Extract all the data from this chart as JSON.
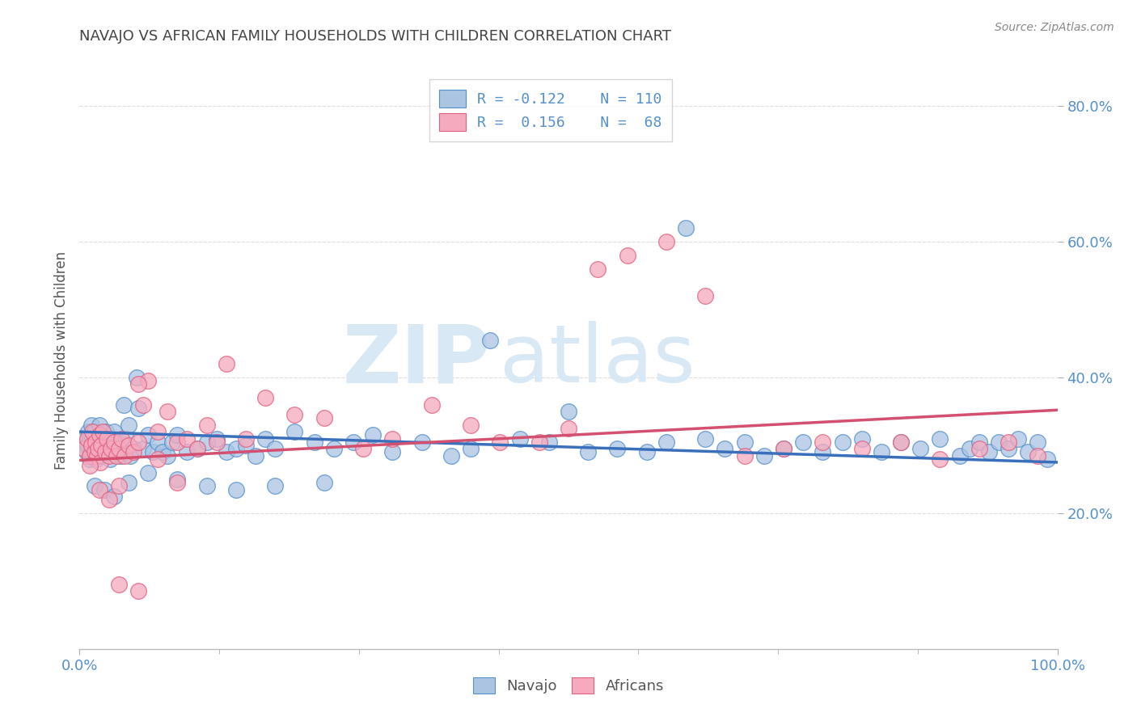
{
  "title": "NAVAJO VS AFRICAN FAMILY HOUSEHOLDS WITH CHILDREN CORRELATION CHART",
  "source": "Source: ZipAtlas.com",
  "ylabel": "Family Households with Children",
  "xlim": [
    0.0,
    1.0
  ],
  "ylim": [
    0.0,
    0.85
  ],
  "yticks": [
    0.2,
    0.4,
    0.6,
    0.8
  ],
  "ytick_labels": [
    "20.0%",
    "40.0%",
    "60.0%",
    "80.0%"
  ],
  "xticks": [
    0.0,
    1.0
  ],
  "xtick_labels": [
    "0.0%",
    "100.0%"
  ],
  "navajo_color": "#aac4e2",
  "african_color": "#f5aabe",
  "navajo_edge_color": "#5590cc",
  "african_edge_color": "#e06080",
  "navajo_line_color": "#3a6fbb",
  "african_line_color": "#d45070",
  "tick_color": "#5590cc",
  "title_color": "#444444",
  "source_color": "#888888",
  "watermark_color": "#d8e8f5",
  "background_color": "#ffffff",
  "grid_color": "#dddddd",
  "navajo_x": [
    0.005,
    0.007,
    0.008,
    0.009,
    0.01,
    0.01,
    0.011,
    0.012,
    0.013,
    0.014,
    0.015,
    0.015,
    0.016,
    0.017,
    0.018,
    0.019,
    0.02,
    0.02,
    0.021,
    0.022,
    0.023,
    0.024,
    0.025,
    0.026,
    0.027,
    0.028,
    0.03,
    0.031,
    0.032,
    0.033,
    0.035,
    0.037,
    0.04,
    0.042,
    0.045,
    0.048,
    0.05,
    0.052,
    0.055,
    0.058,
    0.06,
    0.065,
    0.07,
    0.075,
    0.08,
    0.085,
    0.09,
    0.095,
    0.1,
    0.11,
    0.12,
    0.13,
    0.14,
    0.15,
    0.16,
    0.17,
    0.18,
    0.19,
    0.2,
    0.22,
    0.24,
    0.26,
    0.28,
    0.3,
    0.32,
    0.35,
    0.38,
    0.4,
    0.42,
    0.45,
    0.48,
    0.5,
    0.52,
    0.55,
    0.58,
    0.6,
    0.62,
    0.64,
    0.66,
    0.68,
    0.7,
    0.72,
    0.74,
    0.76,
    0.78,
    0.8,
    0.82,
    0.84,
    0.86,
    0.88,
    0.9,
    0.91,
    0.92,
    0.93,
    0.94,
    0.95,
    0.96,
    0.97,
    0.98,
    0.99,
    0.015,
    0.025,
    0.035,
    0.05,
    0.07,
    0.1,
    0.13,
    0.16,
    0.2,
    0.25
  ],
  "navajo_y": [
    0.31,
    0.29,
    0.3,
    0.32,
    0.28,
    0.31,
    0.29,
    0.33,
    0.31,
    0.285,
    0.295,
    0.32,
    0.3,
    0.28,
    0.31,
    0.29,
    0.305,
    0.33,
    0.285,
    0.315,
    0.29,
    0.3,
    0.31,
    0.29,
    0.32,
    0.295,
    0.305,
    0.28,
    0.3,
    0.31,
    0.32,
    0.295,
    0.305,
    0.285,
    0.36,
    0.31,
    0.33,
    0.285,
    0.295,
    0.4,
    0.355,
    0.295,
    0.315,
    0.29,
    0.305,
    0.29,
    0.285,
    0.305,
    0.315,
    0.29,
    0.295,
    0.305,
    0.31,
    0.29,
    0.295,
    0.3,
    0.285,
    0.31,
    0.295,
    0.32,
    0.305,
    0.295,
    0.305,
    0.315,
    0.29,
    0.305,
    0.285,
    0.295,
    0.455,
    0.31,
    0.305,
    0.35,
    0.29,
    0.295,
    0.29,
    0.305,
    0.62,
    0.31,
    0.295,
    0.305,
    0.285,
    0.295,
    0.305,
    0.29,
    0.305,
    0.31,
    0.29,
    0.305,
    0.295,
    0.31,
    0.285,
    0.295,
    0.305,
    0.29,
    0.305,
    0.295,
    0.31,
    0.29,
    0.305,
    0.28,
    0.24,
    0.235,
    0.225,
    0.245,
    0.26,
    0.25,
    0.24,
    0.235,
    0.24,
    0.245
  ],
  "african_x": [
    0.005,
    0.008,
    0.01,
    0.012,
    0.013,
    0.015,
    0.016,
    0.018,
    0.019,
    0.02,
    0.021,
    0.022,
    0.024,
    0.026,
    0.028,
    0.03,
    0.032,
    0.035,
    0.038,
    0.04,
    0.043,
    0.046,
    0.05,
    0.055,
    0.06,
    0.065,
    0.07,
    0.08,
    0.09,
    0.1,
    0.11,
    0.12,
    0.13,
    0.14,
    0.15,
    0.17,
    0.19,
    0.22,
    0.25,
    0.29,
    0.32,
    0.36,
    0.4,
    0.43,
    0.47,
    0.5,
    0.53,
    0.56,
    0.6,
    0.64,
    0.68,
    0.72,
    0.76,
    0.8,
    0.84,
    0.88,
    0.92,
    0.95,
    0.98,
    0.01,
    0.02,
    0.03,
    0.04,
    0.06,
    0.08,
    0.1,
    0.04,
    0.06
  ],
  "african_y": [
    0.295,
    0.31,
    0.285,
    0.3,
    0.32,
    0.29,
    0.305,
    0.285,
    0.295,
    0.315,
    0.275,
    0.3,
    0.32,
    0.29,
    0.31,
    0.285,
    0.295,
    0.305,
    0.285,
    0.295,
    0.31,
    0.285,
    0.3,
    0.29,
    0.305,
    0.36,
    0.395,
    0.32,
    0.35,
    0.305,
    0.31,
    0.295,
    0.33,
    0.305,
    0.42,
    0.31,
    0.37,
    0.345,
    0.34,
    0.295,
    0.31,
    0.36,
    0.33,
    0.305,
    0.305,
    0.325,
    0.56,
    0.58,
    0.6,
    0.52,
    0.285,
    0.295,
    0.305,
    0.295,
    0.305,
    0.28,
    0.295,
    0.305,
    0.285,
    0.27,
    0.235,
    0.22,
    0.24,
    0.39,
    0.28,
    0.245,
    0.095,
    0.085
  ],
  "navajo_trend_x": [
    0.0,
    1.0
  ],
  "navajo_trend_y": [
    0.32,
    0.275
  ],
  "african_trend_x": [
    0.0,
    1.0
  ],
  "african_trend_y": [
    0.278,
    0.352
  ]
}
